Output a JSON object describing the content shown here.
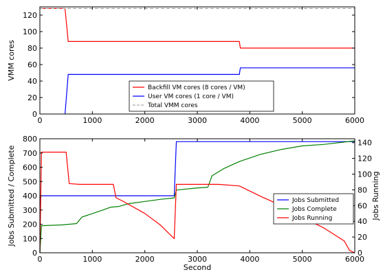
{
  "chart_data": [
    {
      "type": "line",
      "title": "",
      "xlabel": "",
      "ylabel": "VMM cores",
      "xlim": [
        0,
        6000
      ],
      "ylim": [
        0,
        130
      ],
      "xticks": [
        0,
        1000,
        2000,
        3000,
        4000,
        5000,
        6000
      ],
      "yticks": [
        0,
        20,
        40,
        60,
        80,
        100,
        120
      ],
      "grid": false,
      "legend_position": "bottom-center",
      "series": [
        {
          "name": "Backfill VM cores (8 cores / VM)",
          "color": "#ff0000",
          "dash": false,
          "x": [
            0,
            480,
            540,
            3800,
            3820,
            6000
          ],
          "y": [
            128,
            128,
            88,
            88,
            80,
            80
          ]
        },
        {
          "name": "User VM cores (1 core / VM)",
          "color": "#0000ff",
          "dash": false,
          "x": [
            480,
            540,
            3800,
            3820,
            6000
          ],
          "y": [
            0,
            48,
            48,
            56,
            56
          ]
        },
        {
          "name": "Total VMM cores",
          "color": "#aaaaaa",
          "dash": true,
          "x": [
            0,
            6000
          ],
          "y": [
            128,
            128
          ]
        }
      ]
    },
    {
      "type": "line",
      "title": "",
      "xlabel": "Second",
      "ylabel": "Jobs Submitted / Complete",
      "ylabel_right": "Jobs Running",
      "xlim": [
        0,
        6000
      ],
      "ylim": [
        0,
        800
      ],
      "ylim_right": [
        0,
        145
      ],
      "xticks": [
        0,
        1000,
        2000,
        3000,
        4000,
        5000,
        6000
      ],
      "yticks": [
        0,
        100,
        200,
        300,
        400,
        500,
        600,
        700,
        800
      ],
      "yticks_right": [
        0,
        20,
        40,
        60,
        80,
        100,
        120,
        140
      ],
      "grid": false,
      "legend_position": "center-right",
      "series": [
        {
          "name": "Jobs Submitted",
          "color": "#0000ff",
          "axis": "left",
          "x": [
            0,
            10,
            2560,
            2600,
            6000
          ],
          "y": [
            0,
            400,
            400,
            780,
            780
          ]
        },
        {
          "name": "Jobs Complete",
          "color": "#008000",
          "axis": "left",
          "x": [
            0,
            30,
            400,
            560,
            700,
            800,
            1000,
            1200,
            1350,
            1500,
            1700,
            2000,
            2300,
            2560,
            2600,
            3000,
            3200,
            3280,
            3500,
            3800,
            4200,
            4600,
            5000,
            5400,
            6000
          ],
          "y": [
            0,
            190,
            195,
            200,
            205,
            250,
            275,
            300,
            320,
            325,
            345,
            360,
            375,
            385,
            440,
            455,
            460,
            540,
            590,
            640,
            690,
            725,
            750,
            760,
            785
          ]
        },
        {
          "name": "Jobs Running",
          "color": "#ff0000",
          "axis": "right",
          "x": [
            0,
            30,
            500,
            560,
            750,
            1400,
            1450,
            1600,
            2000,
            2300,
            2560,
            2600,
            3300,
            3400,
            3800,
            4200,
            4600,
            5000,
            5400,
            5800,
            5900,
            6000
          ],
          "y": [
            0,
            128,
            128,
            88,
            87,
            87,
            70,
            65,
            50,
            35,
            18,
            87,
            87,
            87,
            85,
            72,
            60,
            45,
            32,
            15,
            3,
            0
          ]
        }
      ]
    }
  ]
}
